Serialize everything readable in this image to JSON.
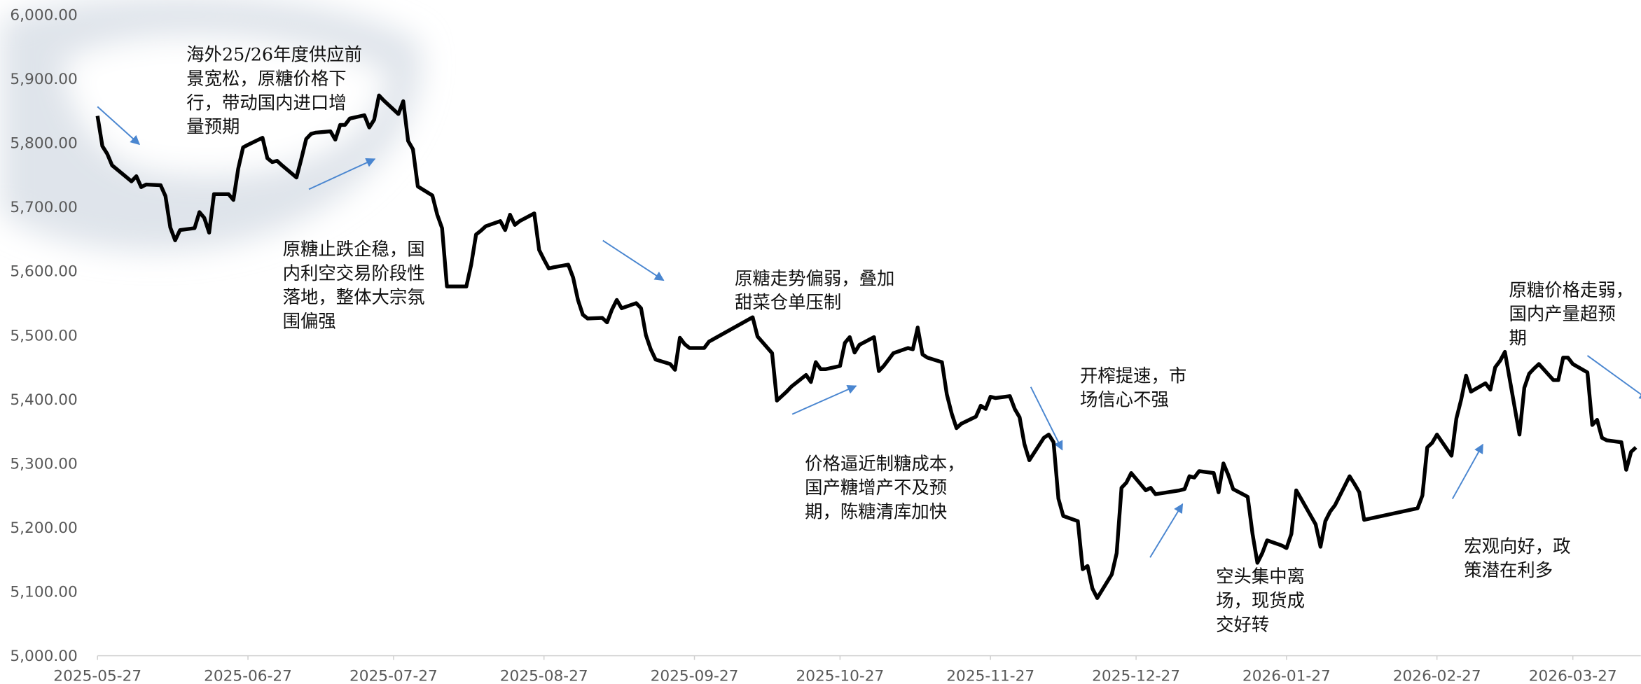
{
  "chart_data": {
    "type": "line",
    "x": [
      "2025-05-27",
      "2025-05-28",
      "2025-05-29",
      "2025-05-30",
      "2025-06-03",
      "2025-06-04",
      "2025-06-05",
      "2025-06-06",
      "2025-06-09",
      "2025-06-10",
      "2025-06-11",
      "2025-06-12",
      "2025-06-13",
      "2025-06-16",
      "2025-06-17",
      "2025-06-18",
      "2025-06-19",
      "2025-06-20",
      "2025-06-23",
      "2025-06-24",
      "2025-06-25",
      "2025-06-26",
      "2025-06-27",
      "2025-06-30",
      "2025-07-01",
      "2025-07-02",
      "2025-07-03",
      "2025-07-04",
      "2025-07-07",
      "2025-07-08",
      "2025-07-09",
      "2025-07-10",
      "2025-07-11",
      "2025-07-14",
      "2025-07-15",
      "2025-07-16",
      "2025-07-17",
      "2025-07-18",
      "2025-07-21",
      "2025-07-22",
      "2025-07-23",
      "2025-07-24",
      "2025-07-25",
      "2025-07-28",
      "2025-07-29",
      "2025-07-30",
      "2025-07-31",
      "2025-08-01",
      "2025-08-04",
      "2025-08-05",
      "2025-08-06",
      "2025-08-07",
      "2025-08-08",
      "2025-08-11",
      "2025-08-12",
      "2025-08-13",
      "2025-08-14",
      "2025-08-15",
      "2025-08-18",
      "2025-08-19",
      "2025-08-20",
      "2025-08-21",
      "2025-08-22",
      "2025-08-25",
      "2025-08-26",
      "2025-08-27",
      "2025-08-28",
      "2025-08-29",
      "2025-09-01",
      "2025-09-02",
      "2025-09-03",
      "2025-09-04",
      "2025-09-05",
      "2025-09-08",
      "2025-09-09",
      "2025-09-10",
      "2025-09-11",
      "2025-09-12",
      "2025-09-15",
      "2025-09-16",
      "2025-09-17",
      "2025-09-18",
      "2025-09-19",
      "2025-09-22",
      "2025-09-23",
      "2025-09-24",
      "2025-09-25",
      "2025-09-26",
      "2025-09-29",
      "2025-09-30",
      "2025-10-09",
      "2025-10-10",
      "2025-10-13",
      "2025-10-14",
      "2025-10-15",
      "2025-10-16",
      "2025-10-17",
      "2025-10-20",
      "2025-10-21",
      "2025-10-22",
      "2025-10-23",
      "2025-10-24",
      "2025-10-27",
      "2025-10-28",
      "2025-10-29",
      "2025-10-30",
      "2025-10-31",
      "2025-11-03",
      "2025-11-04",
      "2025-11-05",
      "2025-11-06",
      "2025-11-07",
      "2025-11-10",
      "2025-11-11",
      "2025-11-12",
      "2025-11-13",
      "2025-11-14",
      "2025-11-17",
      "2025-11-18",
      "2025-11-19",
      "2025-11-20",
      "2025-11-21",
      "2025-11-24",
      "2025-11-25",
      "2025-11-26",
      "2025-11-27",
      "2025-11-28",
      "2025-12-01",
      "2025-12-02",
      "2025-12-03",
      "2025-12-04",
      "2025-12-05",
      "2025-12-08",
      "2025-12-09",
      "2025-12-10",
      "2025-12-11",
      "2025-12-12",
      "2025-12-15",
      "2025-12-16",
      "2025-12-17",
      "2025-12-18",
      "2025-12-19",
      "2025-12-22",
      "2025-12-23",
      "2025-12-24",
      "2025-12-25",
      "2025-12-26",
      "2025-12-29",
      "2025-12-30",
      "2025-12-31",
      "2026-01-05",
      "2026-01-06",
      "2026-01-07",
      "2026-01-08",
      "2026-01-09",
      "2026-01-12",
      "2026-01-13",
      "2026-01-14",
      "2026-01-15",
      "2026-01-16",
      "2026-01-19",
      "2026-01-20",
      "2026-01-21",
      "2026-01-22",
      "2026-01-23",
      "2026-01-26",
      "2026-01-27",
      "2026-01-28",
      "2026-01-29",
      "2026-01-30",
      "2026-02-02",
      "2026-02-03",
      "2026-02-04",
      "2026-02-05",
      "2026-02-06",
      "2026-02-09",
      "2026-02-10",
      "2026-02-11",
      "2026-02-12",
      "2026-02-23",
      "2026-02-24",
      "2026-02-25",
      "2026-02-26",
      "2026-02-27",
      "2026-03-02",
      "2026-03-03",
      "2026-03-04",
      "2026-03-05",
      "2026-03-06",
      "2026-03-09",
      "2026-03-10",
      "2026-03-11",
      "2026-03-12",
      "2026-03-13",
      "2026-03-16",
      "2026-03-17",
      "2026-03-18",
      "2026-03-19",
      "2026-03-20",
      "2026-03-23",
      "2026-03-24",
      "2026-03-25",
      "2026-03-26",
      "2026-03-27",
      "2026-03-30",
      "2026-03-31",
      "2026-04-01",
      "2026-04-02",
      "2026-04-03",
      "2026-04-06",
      "2026-04-07",
      "2026-04-08",
      "2026-04-09"
    ],
    "series": [
      {
        "color": "#000000",
        "values": [
          5842,
          5795,
          5783,
          5765,
          5740,
          5748,
          5731,
          5735,
          5734,
          5717,
          5668,
          5648,
          5664,
          5667,
          5692,
          5683,
          5660,
          5720,
          5720,
          5711,
          5760,
          5793,
          5797,
          5808,
          5776,
          5770,
          5772,
          5765,
          5746,
          5775,
          5806,
          5814,
          5816,
          5818,
          5805,
          5828,
          5828,
          5838,
          5843,
          5824,
          5836,
          5874,
          5866,
          5845,
          5865,
          5803,
          5790,
          5732,
          5718,
          5688,
          5667,
          5576,
          5576,
          5576,
          5610,
          5657,
          5663,
          5670,
          5678,
          5664,
          5688,
          5672,
          5678,
          5690,
          5633,
          5618,
          5604,
          5606,
          5610,
          5590,
          5555,
          5532,
          5526,
          5527,
          5520,
          5540,
          5555,
          5542,
          5550,
          5542,
          5500,
          5478,
          5462,
          5455,
          5446,
          5496,
          5486,
          5480,
          5480,
          5490,
          5528,
          5498,
          5472,
          5398,
          5405,
          5412,
          5420,
          5438,
          5427,
          5458,
          5447,
          5447,
          5452,
          5488,
          5497,
          5473,
          5485,
          5497,
          5444,
          5452,
          5462,
          5472,
          5480,
          5478,
          5512,
          5470,
          5465,
          5458,
          5408,
          5378,
          5355,
          5362,
          5373,
          5390,
          5385,
          5404,
          5402,
          5405,
          5385,
          5372,
          5330,
          5305,
          5340,
          5345,
          5333,
          5245,
          5218,
          5210,
          5135,
          5140,
          5105,
          5090,
          5127,
          5160,
          5262,
          5270,
          5285,
          5258,
          5262,
          5252,
          5258,
          5260,
          5280,
          5278,
          5288,
          5285,
          5255,
          5300,
          5282,
          5260,
          5248,
          5190,
          5145,
          5160,
          5180,
          5172,
          5168,
          5190,
          5258,
          5245,
          5205,
          5170,
          5210,
          5225,
          5235,
          5280,
          5268,
          5255,
          5212,
          5230,
          5250,
          5325,
          5332,
          5345,
          5312,
          5370,
          5400,
          5437,
          5412,
          5425,
          5415,
          5450,
          5460,
          5474,
          5345,
          5418,
          5440,
          5448,
          5455,
          5430,
          5430,
          5465,
          5465,
          5455,
          5442,
          5360,
          5368,
          5340,
          5336,
          5333,
          5290,
          5318,
          5325
        ]
      }
    ],
    "xlim": [
      "2025-05-27",
      "2026-04-10"
    ],
    "xticks": [
      "2025-05-27",
      "2025-06-27",
      "2025-07-27",
      "2025-08-27",
      "2025-09-27",
      "2025-10-27",
      "2025-11-27",
      "2025-12-27",
      "2026-01-27",
      "2026-02-27",
      "2026-03-27"
    ],
    "ylim": [
      5000,
      6000
    ],
    "yticks": [
      {
        "value": 5000,
        "label": "5,000.00"
      },
      {
        "value": 5100,
        "label": "5,100.00"
      },
      {
        "value": 5200,
        "label": "5,200.00"
      },
      {
        "value": 5300,
        "label": "5,300.00"
      },
      {
        "value": 5400,
        "label": "5,400.00"
      },
      {
        "value": 5500,
        "label": "5,500.00"
      },
      {
        "value": 5600,
        "label": "5,600.00"
      },
      {
        "value": 5700,
        "label": "5,700.00"
      },
      {
        "value": 5800,
        "label": "5,800.00"
      },
      {
        "value": 5900,
        "label": "5,900.00"
      },
      {
        "value": 6000,
        "label": "6,000.00"
      }
    ],
    "grid": false,
    "annotations": [
      {
        "lines": [
          "海外25/26年度供应前",
          "景宽松，原糖价格下",
          "行，带动国内进口增",
          "量预期"
        ]
      },
      {
        "lines": [
          "原糖止跌企稳，国",
          "内利空交易阶段性",
          "落地，整体大宗氛",
          "围偏强"
        ]
      },
      {
        "lines": [
          "原糖走势偏弱，叠加",
          "甜菜仓单压制"
        ]
      },
      {
        "lines": [
          "价格逼近制糖成本，",
          "国产糖增产不及预",
          "期，陈糖清库加快"
        ]
      },
      {
        "lines": [
          "开榨提速，市",
          "场信心不强"
        ]
      },
      {
        "lines": [
          "空头集中离",
          "场，现货成",
          "交好转"
        ]
      },
      {
        "lines": [
          "宏观向好，政",
          "策潜在利多"
        ]
      },
      {
        "lines": [
          "原糖价格走弱，",
          "国内产量超预",
          "期"
        ]
      }
    ]
  }
}
